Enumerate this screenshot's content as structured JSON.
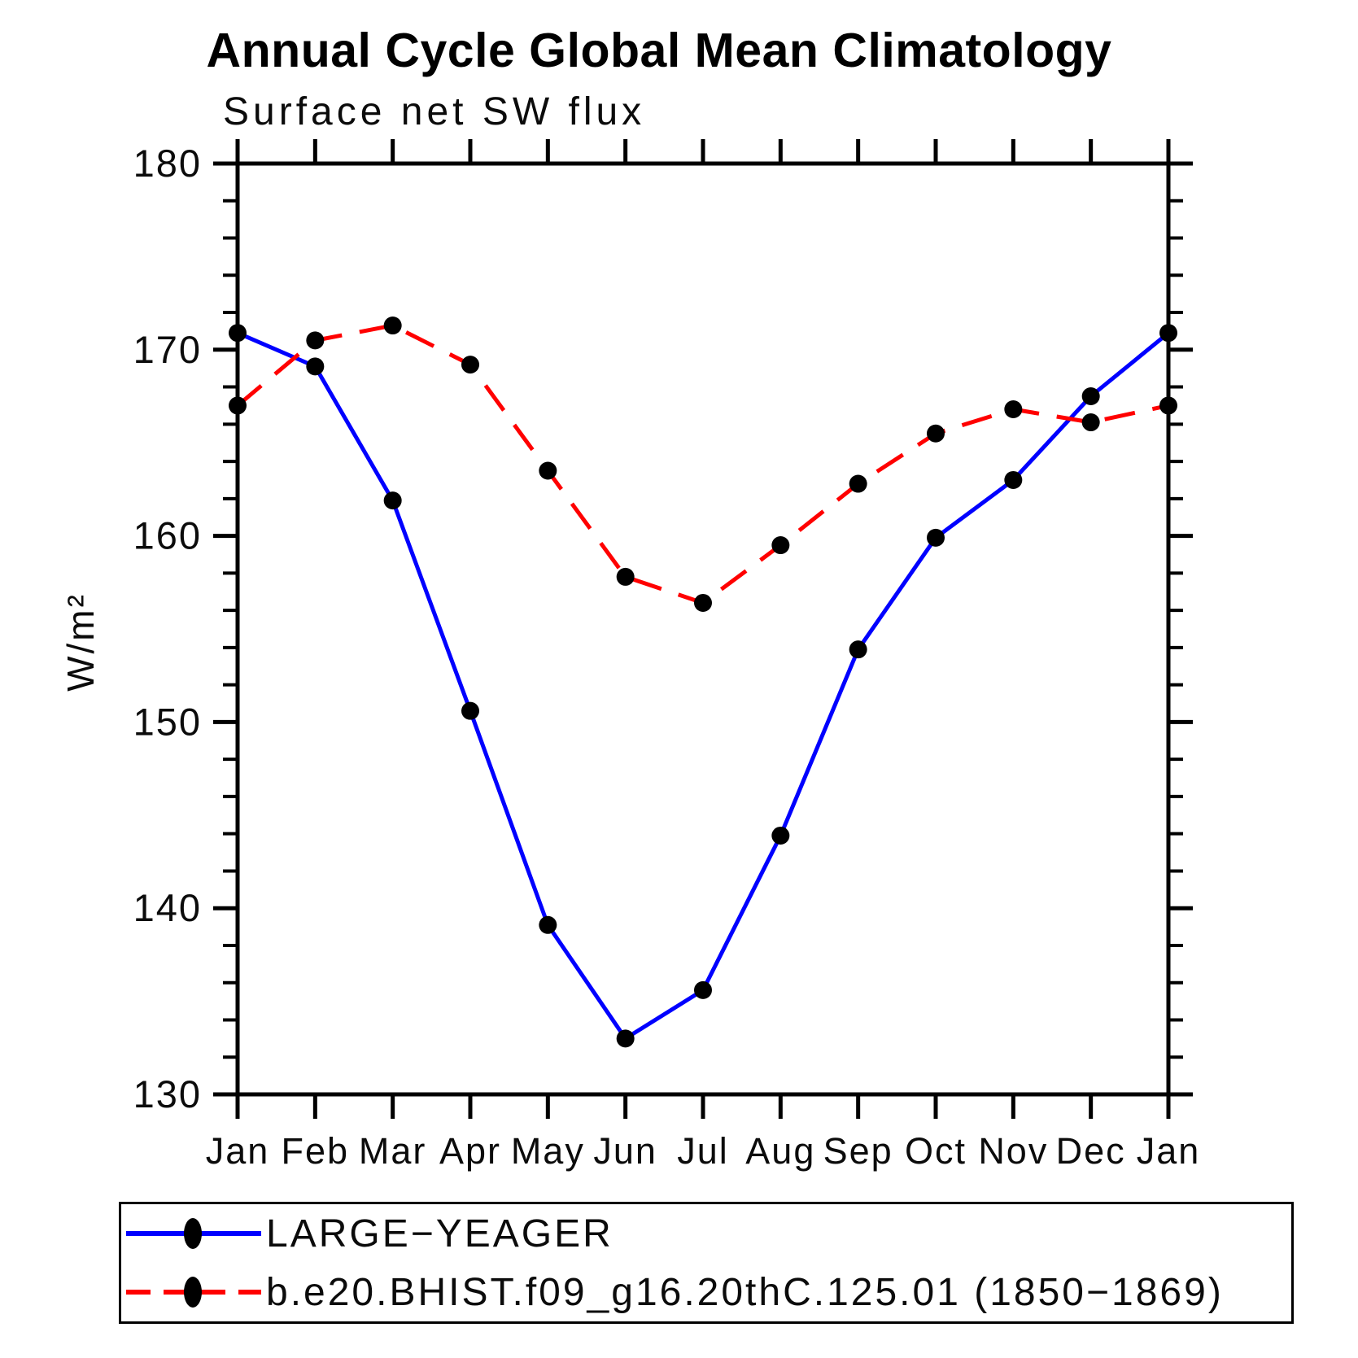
{
  "page": {
    "background": "#ffffff"
  },
  "chart_data": {
    "type": "line",
    "title": "Annual Cycle Global Mean Climatology",
    "subtitle": "Surface net SW flux",
    "ylabel": "W/m²",
    "categories": [
      "Jan",
      "Feb",
      "Mar",
      "Apr",
      "May",
      "Jun",
      "Jul",
      "Aug",
      "Sep",
      "Oct",
      "Nov",
      "Dec",
      "Jan"
    ],
    "ylim": [
      130,
      180
    ],
    "y_major_step": 10,
    "y_minor_step": 2,
    "y_tick_labels": [
      "130",
      "140",
      "150",
      "160",
      "170",
      "180"
    ],
    "grid": false,
    "legend_position": "bottom-left-box",
    "series": [
      {
        "name": "LARGE−YEAGER",
        "color": "#0000ff",
        "style": "solid",
        "marker": "filled-circle",
        "marker_color": "#000000",
        "values": [
          170.9,
          169.1,
          161.9,
          150.6,
          139.1,
          133.0,
          135.6,
          143.9,
          153.9,
          159.9,
          163.0,
          167.5,
          170.9
        ]
      },
      {
        "name": "b.e20.BHIST.f09_g16.20thC.125.01 (1850−1869)",
        "color": "#ff0000",
        "style": "dashed",
        "marker": "filled-circle",
        "marker_color": "#000000",
        "values": [
          167.0,
          170.5,
          171.3,
          169.2,
          163.5,
          157.8,
          156.4,
          159.5,
          162.8,
          165.5,
          166.8,
          166.1,
          167.0
        ]
      }
    ]
  }
}
